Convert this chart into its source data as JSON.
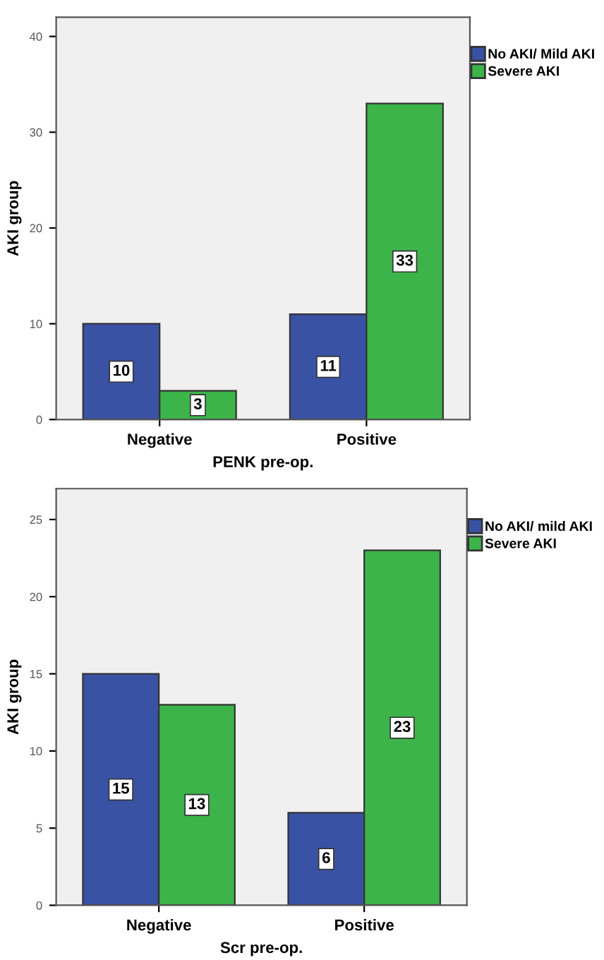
{
  "chart_data": [
    {
      "type": "bar",
      "xlabel": "PENK pre-op.",
      "ylabel": "AKI group",
      "categories": [
        "Negative",
        "Positive"
      ],
      "series": [
        {
          "name": "No AKI/ Mild AKI",
          "color": "#3a52a4",
          "values": [
            10,
            11
          ]
        },
        {
          "name": "Severe AKI",
          "color": "#3cb44a",
          "values": [
            3,
            33
          ]
        }
      ],
      "ylim": [
        0,
        42
      ],
      "yticks": [
        0,
        10,
        20,
        30,
        40
      ],
      "data_labels": true,
      "legend": "top right",
      "grid": false
    },
    {
      "type": "bar",
      "xlabel": "Scr pre-op.",
      "ylabel": "AKI group",
      "categories": [
        "Negative",
        "Positive"
      ],
      "series": [
        {
          "name": "No AKI/ mild AKI",
          "color": "#3a52a4",
          "values": [
            15,
            6
          ]
        },
        {
          "name": "Severe AKI",
          "color": "#3cb44a",
          "values": [
            13,
            23
          ]
        }
      ],
      "ylim": [
        0,
        27
      ],
      "yticks": [
        0,
        5,
        10,
        15,
        20,
        25
      ],
      "data_labels": true,
      "legend": "top right",
      "grid": false
    }
  ]
}
